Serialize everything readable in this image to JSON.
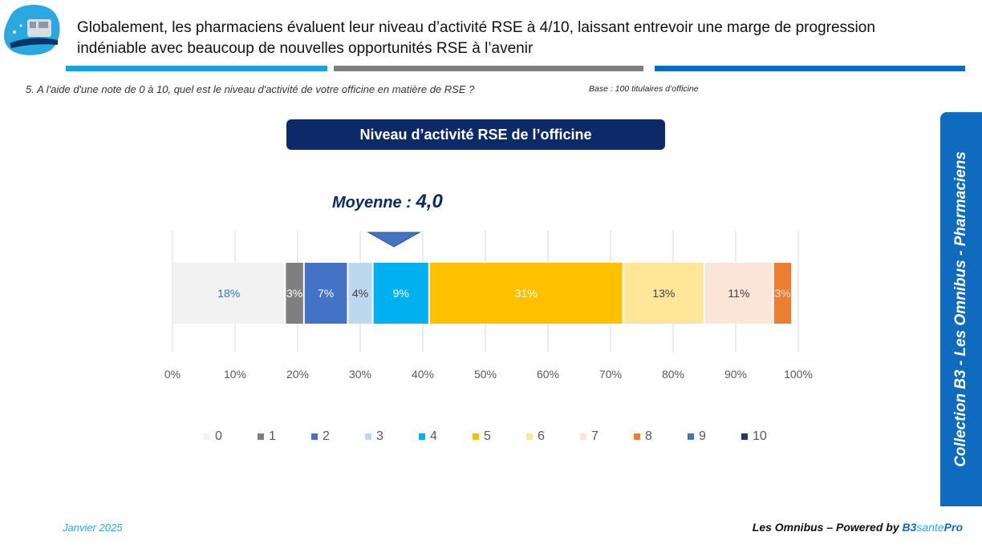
{
  "header": {
    "headline": "Globalement, les pharmaciens évaluent leur niveau d’activité RSE à 4/10, laissant entrevoir une marge de progression indéniable avec beaucoup de nouvelles opportunités RSE à l’avenir",
    "question": "5. A l'aide d'une note de 0 à 10, quel est le niveau d'activité de votre officine en matière de RSE ?",
    "base": "Base : 100 titulaires d’officine"
  },
  "side_banner": "Collection  B3 - Les Omnibus - Pharmaciens",
  "footer": {
    "date": "Janvier 2025",
    "brand_prefix": "Les Omnibus – Powered by ",
    "brand_b3": "B3",
    "brand_sante": "sante",
    "brand_pro": "Pro"
  },
  "mean": {
    "label": "Moyenne : ",
    "value": "4,0",
    "position_pct": 40
  },
  "chart_data": {
    "type": "bar",
    "orientation": "horizontal-stacked-100",
    "title": "Niveau d’activité RSE de l’officine",
    "xlim": [
      0,
      100
    ],
    "x_ticks": [
      "0%",
      "10%",
      "20%",
      "30%",
      "40%",
      "50%",
      "60%",
      "70%",
      "80%",
      "90%",
      "100%"
    ],
    "grid": true,
    "legend_position": "bottom",
    "series": [
      {
        "name": "0",
        "value": 18,
        "label": "18%",
        "color": "#f2f2f2",
        "label_color": "#2e75b6"
      },
      {
        "name": "1",
        "value": 3,
        "label": "3%",
        "color": "#7f7f7f",
        "label_color": "#ffffff"
      },
      {
        "name": "2",
        "value": 7,
        "label": "7%",
        "color": "#4472c4",
        "label_color": "#ffffff"
      },
      {
        "name": "3",
        "value": 4,
        "label": "4%",
        "color": "#bdd7ee",
        "label_color": "#404040"
      },
      {
        "name": "4",
        "value": 9,
        "label": "9%",
        "color": "#00b0f0",
        "label_color": "#ffffff"
      },
      {
        "name": "5",
        "value": 31,
        "label": "31%",
        "color": "#ffc000",
        "label_color": "#ffffff"
      },
      {
        "name": "6",
        "value": 13,
        "label": "13%",
        "color": "#ffe699",
        "label_color": "#404040"
      },
      {
        "name": "7",
        "value": 11,
        "label": "11%",
        "color": "#fbe5d6",
        "label_color": "#404040"
      },
      {
        "name": "8",
        "value": 3,
        "label": "3%",
        "color": "#ed7d31",
        "label_color": "#fbe5d6"
      },
      {
        "name": "9",
        "value": 0,
        "label": "",
        "color": "#4472c4",
        "label_color": "#ffffff"
      },
      {
        "name": "10",
        "value": 0,
        "label": "",
        "color": "#1f3864",
        "label_color": "#ffffff"
      }
    ]
  }
}
